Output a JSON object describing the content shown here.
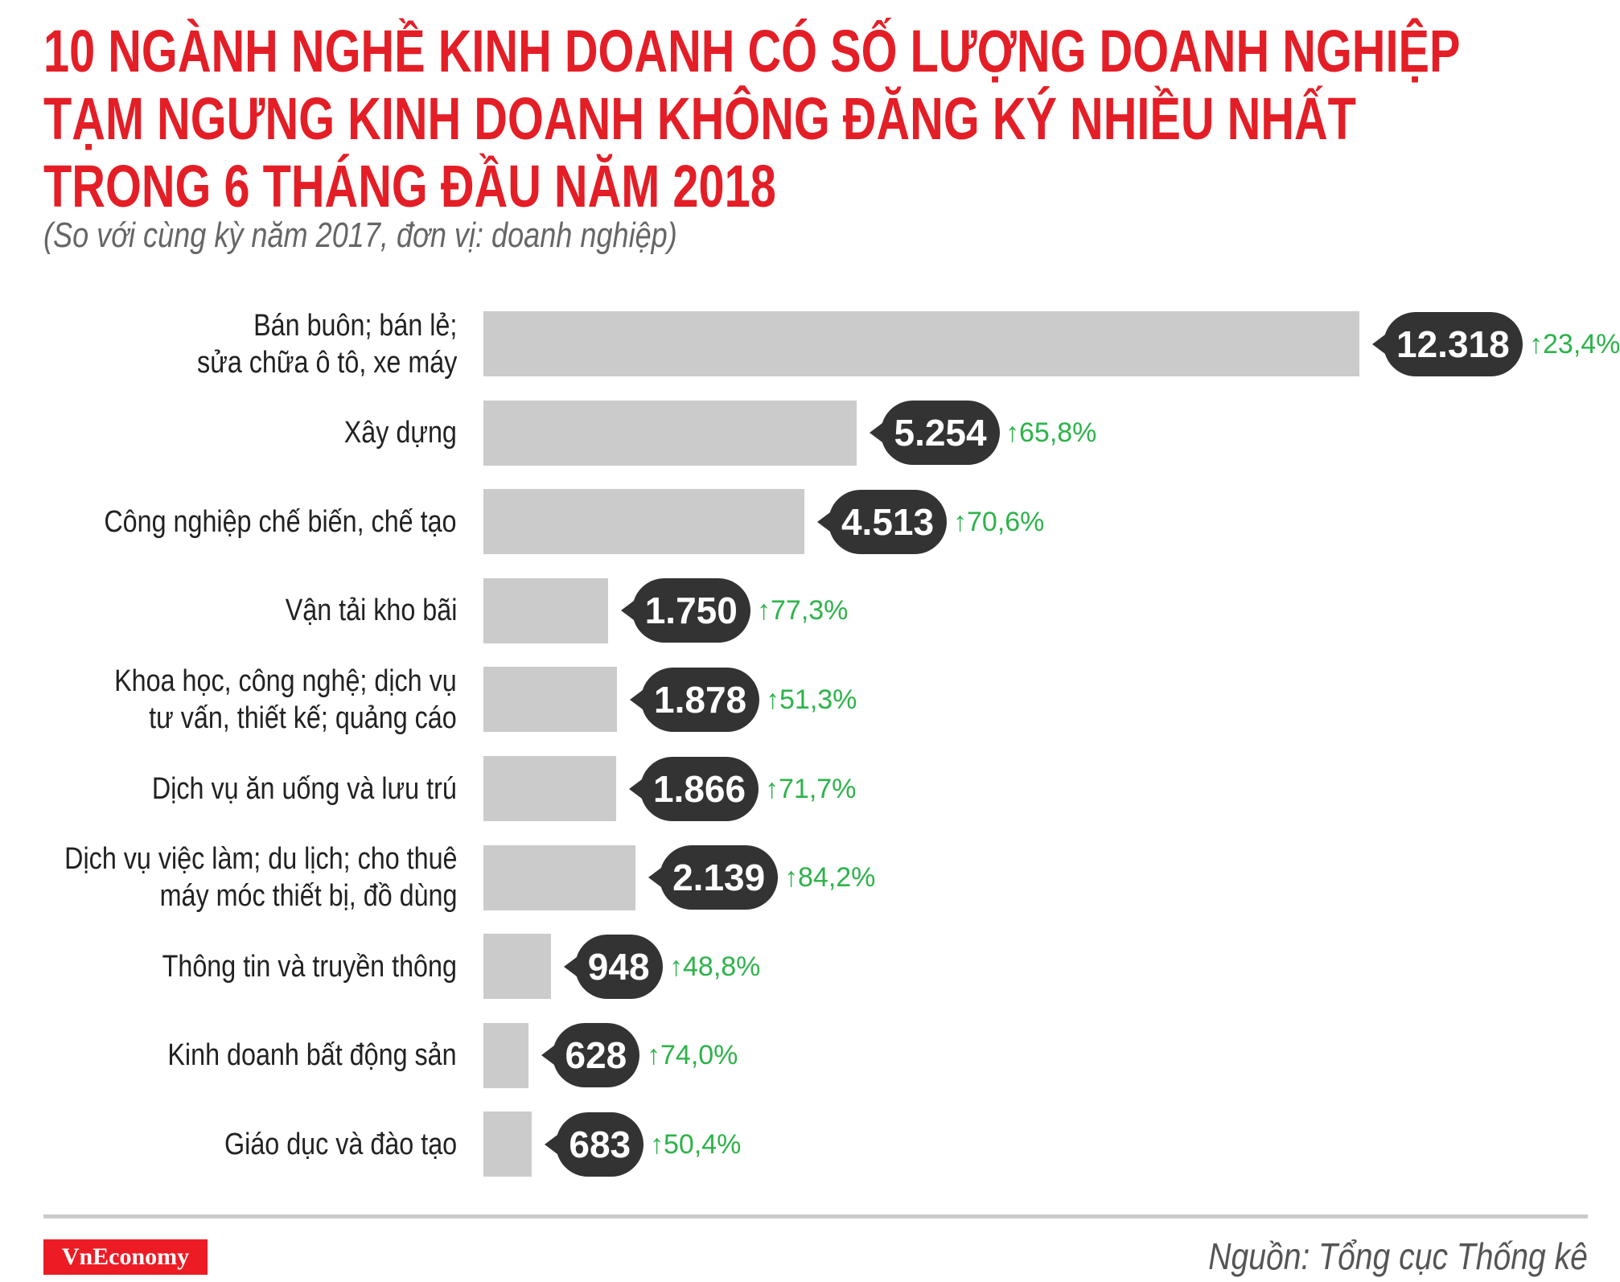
{
  "chart_data": {
    "type": "bar",
    "orientation": "horizontal",
    "title": [
      "10 NGÀNH NGHỀ KINH DOANH CÓ SỐ LƯỢNG DOANH NGHIỆP",
      "TẠM NGƯNG KINH DOANH KHÔNG ĐĂNG KÝ NHIỀU NHẤT",
      "TRONG 6 THÁNG ĐẦU NĂM 2018"
    ],
    "subtitle": "(So với cùng kỳ năm 2017, đơn vị: doanh nghiệp)",
    "categories": [
      [
        "Bán buôn; bán lẻ;",
        "sửa chữa ô tô, xe máy"
      ],
      [
        "Xây dựng"
      ],
      [
        "Công nghiệp chế biến, chế tạo"
      ],
      [
        "Vận tải kho bãi"
      ],
      [
        "Khoa học, công nghệ; dịch vụ",
        "tư vấn, thiết kế; quảng cáo"
      ],
      [
        "Dịch vụ ăn uống và lưu trú"
      ],
      [
        "Dịch vụ việc làm; du lịch; cho thuê",
        "máy móc thiết bị, đồ dùng"
      ],
      [
        "Thông tin và truyền thông"
      ],
      [
        "Kinh doanh bất động sản"
      ],
      [
        "Giáo dục và đào tạo"
      ]
    ],
    "values": [
      12318,
      5254,
      4513,
      1750,
      1878,
      1866,
      2139,
      948,
      628,
      683
    ],
    "value_labels": [
      "12.318",
      "5.254",
      "4.513",
      "1.750",
      "1.878",
      "1.866",
      "2.139",
      "948",
      "628",
      "683"
    ],
    "changes": [
      "23,4%",
      "65,8%",
      "70,6%",
      "77,3%",
      "51,3%",
      "71,7%",
      "84,2%",
      "48,8%",
      "74,0%",
      "50,4%"
    ],
    "change_icon": "arrow-up-icon",
    "colors": {
      "bar": "#cbcbcb",
      "bubble": "#333333",
      "change": "#2db34a",
      "title": "#e41e26"
    },
    "grid": false
  },
  "footer": {
    "logo": "VnEconomy",
    "source": "Nguồn: Tổng cục Thống kê"
  }
}
